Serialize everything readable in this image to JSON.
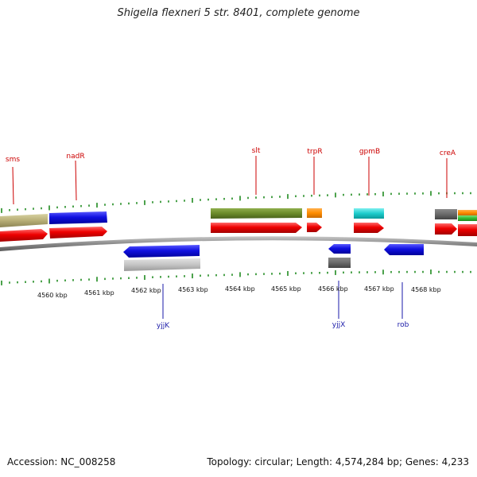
{
  "title": "Shigella flexneri 5 str. 8401, complete genome",
  "footer": {
    "accession": "Accession: NC_008258",
    "topology": "Topology: circular; Length: 4,574,284 bp; Genes: 4,233"
  },
  "colors": {
    "top_label": "#cc0000",
    "bottom_label": "#1a1aa8",
    "tick": "#1f8a1f",
    "backbone": "#8a8a8a"
  },
  "scale_labels": [
    "4560 kbp",
    "4561 kbp",
    "4562 kbp",
    "4563 kbp",
    "4564 kbp",
    "4565 kbp",
    "4566 kbp",
    "4567 kbp",
    "4568 kbp"
  ],
  "top_gene_labels": [
    "sms",
    "nadR",
    "slt",
    "trpR",
    "gpmB",
    "creA"
  ],
  "bottom_gene_labels": [
    "yjjK",
    "yjjX",
    "rob"
  ]
}
